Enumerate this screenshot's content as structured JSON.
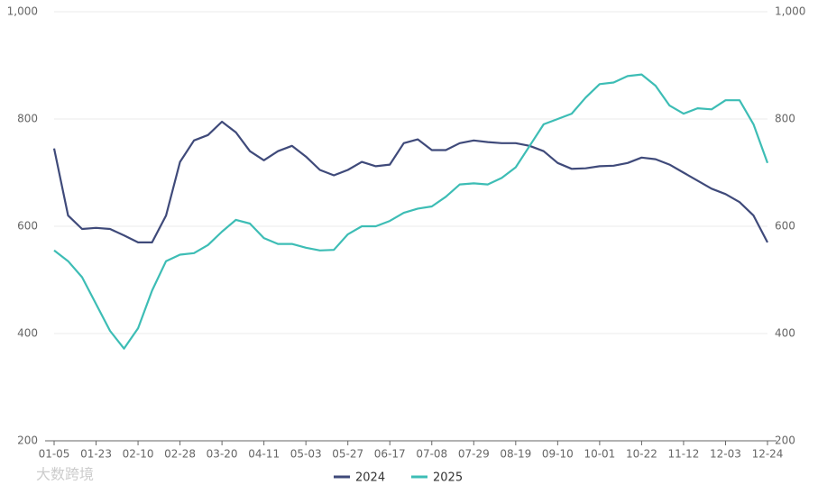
{
  "chart_data": {
    "type": "line",
    "categories": [
      "01-05",
      null,
      null,
      "01-23",
      null,
      null,
      "02-10",
      null,
      null,
      "02-28",
      null,
      null,
      "03-20",
      null,
      null,
      "04-11",
      null,
      null,
      "05-03",
      null,
      null,
      "05-27",
      null,
      null,
      "06-17",
      null,
      null,
      "07-08",
      null,
      null,
      "07-29",
      null,
      null,
      "08-19",
      null,
      null,
      "09-10",
      null,
      null,
      "10-01",
      null,
      null,
      "10-22",
      null,
      null,
      "11-12",
      null,
      null,
      "12-03",
      null,
      null,
      "12-24"
    ],
    "series": [
      {
        "name": "2024",
        "color": "#3f4a7a",
        "values": [
          745,
          620,
          595,
          597,
          595,
          583,
          570,
          570,
          620,
          720,
          760,
          770,
          795,
          775,
          740,
          723,
          740,
          750,
          730,
          705,
          695,
          705,
          720,
          712,
          715,
          755,
          762,
          742,
          742,
          755,
          760,
          757,
          755,
          755,
          750,
          740,
          718,
          707,
          708,
          712,
          713,
          718,
          728,
          725,
          715,
          700,
          685,
          670,
          660,
          645,
          620,
          570
        ]
      },
      {
        "name": "2025",
        "color": "#3dbdb5",
        "values": [
          555,
          535,
          505,
          455,
          405,
          372,
          410,
          480,
          535,
          547,
          550,
          565,
          590,
          612,
          605,
          578,
          567,
          567,
          560,
          555,
          556,
          585,
          600,
          600,
          610,
          625,
          633,
          637,
          655,
          678,
          680,
          678,
          690,
          710,
          750,
          790,
          800,
          810,
          840,
          865,
          868,
          880,
          883,
          862,
          825,
          810,
          820,
          818,
          835,
          835,
          790,
          718
        ],
        "axis": "y2"
      }
    ],
    "ylim": [
      200,
      1000
    ],
    "yticks": [
      200,
      400,
      600,
      800,
      {
        "value": 1000,
        "label": "1,000"
      }
    ],
    "y2lim": [
      200,
      1000
    ],
    "y2ticks": [
      200,
      400,
      600,
      800,
      {
        "value": 1000,
        "label": "1,000"
      }
    ],
    "grid": true,
    "legend": "bottom",
    "watermark": "大数跨境"
  }
}
